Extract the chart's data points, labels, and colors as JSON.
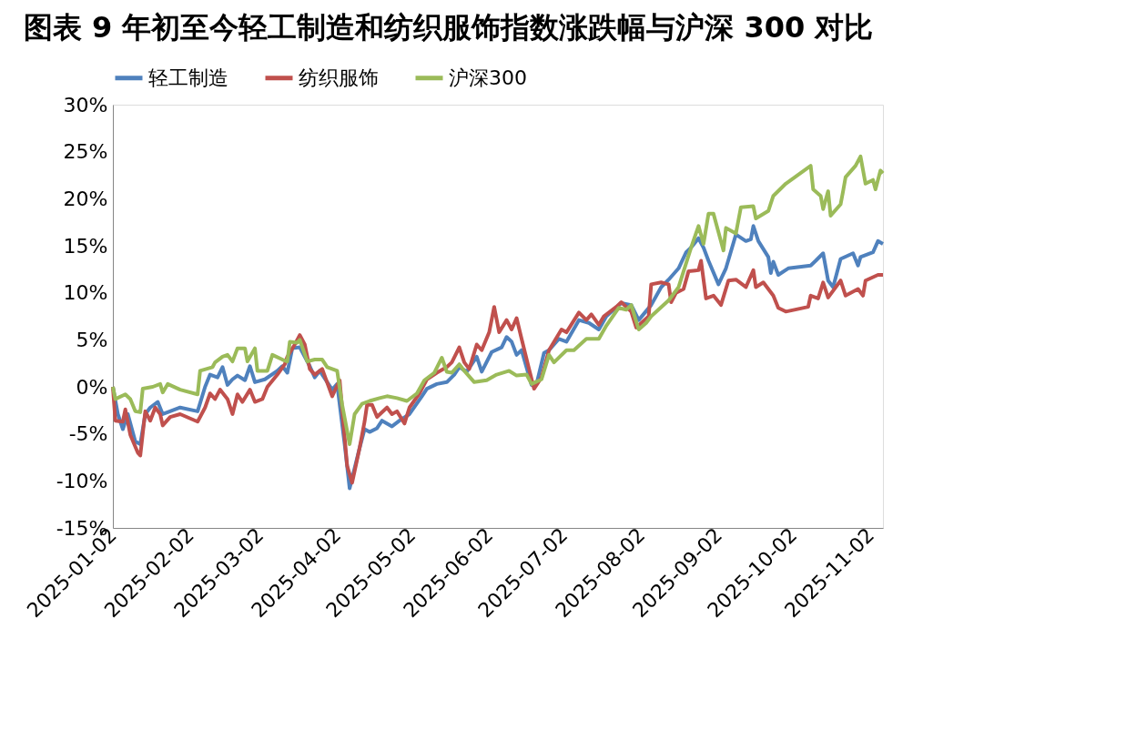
{
  "chart_data": {
    "type": "line",
    "title": "图表 9 年初至今轻工制造和纺织服饰指数涨跌幅与沪深 300 对比",
    "xlim": [
      "2025-01-02",
      "2025-11-07"
    ],
    "xticks": [
      "2025-01-02",
      "2025-02-02",
      "2025-03-02",
      "2025-04-02",
      "2025-05-02",
      "2025-06-02",
      "2025-07-02",
      "2025-08-02",
      "2025-09-02",
      "2025-10-02",
      "2025-11-02"
    ],
    "ylim": [
      -15,
      30
    ],
    "yticks": [
      {
        "value": -15,
        "label": "-15%"
      },
      {
        "value": -10,
        "label": "-10%"
      },
      {
        "value": -5,
        "label": "-5%"
      },
      {
        "value": 0,
        "label": "0%"
      },
      {
        "value": 5,
        "label": "5%"
      },
      {
        "value": 10,
        "label": "10%"
      },
      {
        "value": 15,
        "label": "15%"
      },
      {
        "value": 20,
        "label": "20%"
      },
      {
        "value": 25,
        "label": "25%"
      },
      {
        "value": 30,
        "label": "30%"
      }
    ],
    "grid": false,
    "legend": "top",
    "marker": "none",
    "line_style": "solid",
    "series": [
      {
        "name": "轻工制造",
        "color": "#4f81bd",
        "x": [
          "2025-01-02",
          "2025-01-04",
          "2025-01-06",
          "2025-01-08",
          "2025-01-11",
          "2025-01-13",
          "2025-01-15",
          "2025-01-17",
          "2025-01-20",
          "2025-01-22",
          "2025-01-24",
          "2025-01-29",
          "2025-02-05",
          "2025-02-08",
          "2025-02-10",
          "2025-02-13",
          "2025-02-15",
          "2025-02-17",
          "2025-02-19",
          "2025-02-21",
          "2025-02-24",
          "2025-02-26",
          "2025-02-28",
          "2025-03-04",
          "2025-03-09",
          "2025-03-11",
          "2025-03-13",
          "2025-03-15",
          "2025-03-18",
          "2025-03-22",
          "2025-03-24",
          "2025-03-26",
          "2025-03-31",
          "2025-04-02",
          "2025-04-05",
          "2025-04-07",
          "2025-04-11",
          "2025-04-13",
          "2025-04-15",
          "2025-04-18",
          "2025-04-20",
          "2025-04-24",
          "2025-04-27",
          "2025-05-01",
          "2025-05-06",
          "2025-05-08",
          "2025-05-12",
          "2025-05-16",
          "2025-05-19",
          "2025-05-21",
          "2025-05-24",
          "2025-05-28",
          "2025-05-30",
          "2025-06-03",
          "2025-06-07",
          "2025-06-09",
          "2025-06-11",
          "2025-06-13",
          "2025-06-15",
          "2025-06-19",
          "2025-06-21",
          "2025-06-24",
          "2025-06-26",
          "2025-06-30",
          "2025-07-03",
          "2025-07-08",
          "2025-07-12",
          "2025-07-16",
          "2025-07-19",
          "2025-07-25",
          "2025-07-29",
          "2025-08-01",
          "2025-08-06",
          "2025-08-10",
          "2025-08-13",
          "2025-08-17",
          "2025-08-20",
          "2025-08-22",
          "2025-08-25",
          "2025-08-27",
          "2025-08-29",
          "2025-09-02",
          "2025-09-05",
          "2025-09-09",
          "2025-09-13",
          "2025-09-15",
          "2025-09-16",
          "2025-09-18",
          "2025-09-22",
          "2025-09-23",
          "2025-09-24",
          "2025-09-26",
          "2025-09-30",
          "2025-10-09",
          "2025-10-11",
          "2025-10-14",
          "2025-10-16",
          "2025-10-18",
          "2025-10-21",
          "2025-10-26",
          "2025-10-28",
          "2025-10-29",
          "2025-11-03",
          "2025-11-05",
          "2025-11-07"
        ],
        "values": [
          0,
          -2.9,
          -4.5,
          -2.9,
          -5.8,
          -6.1,
          -2.9,
          -2.2,
          -1.6,
          -2.9,
          -2.7,
          -2.2,
          -2.6,
          0,
          1.3,
          1.0,
          2.1,
          0.2,
          0.8,
          1.2,
          0.7,
          2.2,
          0.5,
          0.8,
          1.7,
          2.2,
          1.5,
          4.1,
          4.2,
          2.2,
          1.0,
          1.7,
          -0.3,
          0.3,
          -6.1,
          -10.8,
          -6.5,
          -4.5,
          -4.8,
          -4.4,
          -3.6,
          -4.2,
          -3.6,
          -2.9,
          -1.0,
          -0.2,
          0.3,
          0.5,
          1.3,
          2.1,
          1.6,
          3.2,
          1.6,
          3.7,
          4.2,
          5.3,
          4.8,
          3.4,
          3.9,
          0.2,
          0.3,
          3.6,
          3.9,
          5.1,
          4.8,
          7.1,
          6.8,
          6.1,
          7.5,
          8.9,
          8.7,
          7.1,
          8.7,
          10.6,
          11.4,
          12.6,
          14.3,
          14.8,
          15.8,
          14.8,
          13.4,
          10.9,
          12.6,
          16.2,
          15.5,
          15.7,
          17.1,
          15.5,
          13.8,
          12.1,
          13.3,
          11.9,
          12.6,
          12.9,
          13.4,
          14.2,
          11.3,
          10.6,
          13.6,
          14.2,
          12.9,
          13.8,
          14.3,
          15.5,
          15.2
        ]
      },
      {
        "name": "纺织服饰",
        "color": "#c0504d",
        "x": [
          "2025-01-02",
          "2025-01-03",
          "2025-01-06",
          "2025-01-07",
          "2025-01-09",
          "2025-01-12",
          "2025-01-13",
          "2025-01-15",
          "2025-01-17",
          "2025-01-19",
          "2025-01-21",
          "2025-01-22",
          "2025-01-25",
          "2025-01-29",
          "2025-02-05",
          "2025-02-08",
          "2025-02-10",
          "2025-02-12",
          "2025-02-14",
          "2025-02-17",
          "2025-02-19",
          "2025-02-21",
          "2025-02-23",
          "2025-02-26",
          "2025-02-28",
          "2025-03-03",
          "2025-03-05",
          "2025-03-09",
          "2025-03-12",
          "2025-03-13",
          "2025-03-16",
          "2025-03-18",
          "2025-03-20",
          "2025-03-22",
          "2025-03-24",
          "2025-03-27",
          "2025-03-31",
          "2025-04-03",
          "2025-04-06",
          "2025-04-08",
          "2025-04-11",
          "2025-04-13",
          "2025-04-14",
          "2025-04-16",
          "2025-04-18",
          "2025-04-22",
          "2025-04-24",
          "2025-04-26",
          "2025-04-29",
          "2025-05-01",
          "2025-05-05",
          "2025-05-08",
          "2025-05-12",
          "2025-05-16",
          "2025-05-18",
          "2025-05-21",
          "2025-05-23",
          "2025-05-25",
          "2025-05-28",
          "2025-05-30",
          "2025-06-02",
          "2025-06-04",
          "2025-06-06",
          "2025-06-09",
          "2025-06-11",
          "2025-06-13",
          "2025-06-15",
          "2025-06-18",
          "2025-06-20",
          "2025-06-23",
          "2025-06-26",
          "2025-07-01",
          "2025-07-03",
          "2025-07-08",
          "2025-07-11",
          "2025-07-13",
          "2025-07-16",
          "2025-07-18",
          "2025-07-23",
          "2025-07-25",
          "2025-07-29",
          "2025-07-31",
          "2025-08-05",
          "2025-08-06",
          "2025-08-10",
          "2025-08-13",
          "2025-08-14",
          "2025-08-16",
          "2025-08-19",
          "2025-08-21",
          "2025-08-25",
          "2025-08-26",
          "2025-08-28",
          "2025-08-31",
          "2025-09-03",
          "2025-09-06",
          "2025-09-09",
          "2025-09-13",
          "2025-09-16",
          "2025-09-17",
          "2025-09-20",
          "2025-09-24",
          "2025-09-26",
          "2025-09-29",
          "2025-10-08",
          "2025-10-09",
          "2025-10-12",
          "2025-10-14",
          "2025-10-16",
          "2025-10-21",
          "2025-10-23",
          "2025-10-28",
          "2025-10-30",
          "2025-10-31",
          "2025-11-05",
          "2025-11-07"
        ],
        "values": [
          0,
          -3.6,
          -3.7,
          -2.4,
          -5.1,
          -7.0,
          -7.3,
          -2.6,
          -3.6,
          -2.2,
          -2.9,
          -4.1,
          -3.2,
          -2.9,
          -3.7,
          -2.2,
          -0.7,
          -1.3,
          -0.3,
          -1.3,
          -2.9,
          -0.8,
          -1.6,
          -0.3,
          -1.6,
          -1.3,
          0,
          1.3,
          2.4,
          3.2,
          4.5,
          5.5,
          4.5,
          1.9,
          1.3,
          1.9,
          -1.0,
          0.7,
          -8.4,
          -10.2,
          -6.5,
          -3.7,
          -1.9,
          -1.9,
          -3.2,
          -2.2,
          -2.9,
          -2.6,
          -3.9,
          -2.2,
          -0.7,
          0.8,
          1.5,
          2.1,
          2.6,
          4.2,
          2.6,
          1.9,
          4.5,
          3.9,
          5.8,
          8.5,
          5.8,
          7.1,
          6.1,
          7.3,
          5.1,
          1.9,
          -0.2,
          1.0,
          3.9,
          6.1,
          5.8,
          7.9,
          7.1,
          7.7,
          6.6,
          7.5,
          8.5,
          9.0,
          8.0,
          6.3,
          7.5,
          10.9,
          11.1,
          10.9,
          9.0,
          10.0,
          10.4,
          12.3,
          12.4,
          13.4,
          9.4,
          9.7,
          8.7,
          11.3,
          11.4,
          10.6,
          12.4,
          10.6,
          11.1,
          9.7,
          8.4,
          8.0,
          8.5,
          9.7,
          9.4,
          11.1,
          9.5,
          11.3,
          9.7,
          10.4,
          9.7,
          11.3,
          11.9,
          11.9
        ]
      },
      {
        "name": "沪深300",
        "color": "#9bbb59",
        "x": [
          "2025-01-02",
          "2025-01-03",
          "2025-01-07",
          "2025-01-09",
          "2025-01-11",
          "2025-01-13",
          "2025-01-14",
          "2025-01-18",
          "2025-01-21",
          "2025-01-22",
          "2025-01-24",
          "2025-01-29",
          "2025-02-05",
          "2025-02-06",
          "2025-02-11",
          "2025-02-12",
          "2025-02-15",
          "2025-02-17",
          "2025-02-19",
          "2025-02-21",
          "2025-02-24",
          "2025-02-25",
          "2025-02-28",
          "2025-03-01",
          "2025-03-05",
          "2025-03-07",
          "2025-03-11",
          "2025-03-13",
          "2025-03-14",
          "2025-03-17",
          "2025-03-18",
          "2025-03-21",
          "2025-03-24",
          "2025-03-27",
          "2025-03-29",
          "2025-04-02",
          "2025-04-04",
          "2025-04-07",
          "2025-04-09",
          "2025-04-12",
          "2025-04-15",
          "2025-04-19",
          "2025-04-22",
          "2025-04-26",
          "2025-04-30",
          "2025-05-04",
          "2025-05-07",
          "2025-05-11",
          "2025-05-14",
          "2025-05-16",
          "2025-05-18",
          "2025-05-21",
          "2025-05-23",
          "2025-05-27",
          "2025-06-01",
          "2025-06-05",
          "2025-06-10",
          "2025-06-13",
          "2025-06-17",
          "2025-06-19",
          "2025-06-23",
          "2025-06-26",
          "2025-06-28",
          "2025-07-03",
          "2025-07-06",
          "2025-07-11",
          "2025-07-16",
          "2025-07-19",
          "2025-07-24",
          "2025-07-27",
          "2025-07-29",
          "2025-08-01",
          "2025-08-04",
          "2025-08-06",
          "2025-08-13",
          "2025-08-17",
          "2025-08-22",
          "2025-08-25",
          "2025-08-27",
          "2025-08-29",
          "2025-08-31",
          "2025-09-04",
          "2025-09-05",
          "2025-09-09",
          "2025-09-11",
          "2025-09-16",
          "2025-09-17",
          "2025-09-22",
          "2025-09-24",
          "2025-09-29",
          "2025-10-09",
          "2025-10-10",
          "2025-10-13",
          "2025-10-14",
          "2025-10-16",
          "2025-10-17",
          "2025-10-21",
          "2025-10-22",
          "2025-10-23",
          "2025-10-27",
          "2025-10-29",
          "2025-10-31",
          "2025-11-03",
          "2025-11-04",
          "2025-11-06",
          "2025-11-07"
        ],
        "values": [
          0,
          -1.3,
          -0.8,
          -1.3,
          -2.6,
          -2.7,
          -0.2,
          0,
          0.3,
          -0.6,
          0.3,
          -0.3,
          -0.8,
          1.7,
          2.1,
          2.6,
          3.2,
          3.4,
          2.7,
          4.1,
          4.1,
          2.7,
          4.1,
          1.7,
          1.7,
          3.4,
          2.9,
          2.7,
          4.8,
          4.7,
          5.0,
          2.7,
          2.9,
          2.9,
          2.1,
          1.7,
          -1.9,
          -6.1,
          -2.9,
          -1.8,
          -1.5,
          -1.2,
          -1.0,
          -1.2,
          -1.5,
          -0.7,
          0.7,
          1.5,
          3.1,
          1.6,
          1.5,
          2.4,
          1.7,
          0.5,
          0.7,
          1.3,
          1.7,
          1.2,
          1.3,
          0.3,
          0.8,
          3.4,
          2.6,
          3.9,
          3.9,
          5.1,
          5.1,
          6.5,
          8.4,
          8.2,
          8.7,
          6.1,
          6.8,
          7.5,
          9.2,
          10.6,
          14.8,
          17.1,
          15.2,
          18.4,
          18.4,
          14.5,
          16.9,
          16.3,
          19.1,
          19.2,
          17.9,
          18.7,
          20.3,
          21.6,
          23.5,
          21.0,
          20.3,
          18.9,
          20.8,
          18.2,
          19.4,
          20.8,
          22.3,
          23.5,
          24.5,
          21.6,
          22.0,
          21.0,
          23.0,
          22.7
        ]
      }
    ]
  }
}
